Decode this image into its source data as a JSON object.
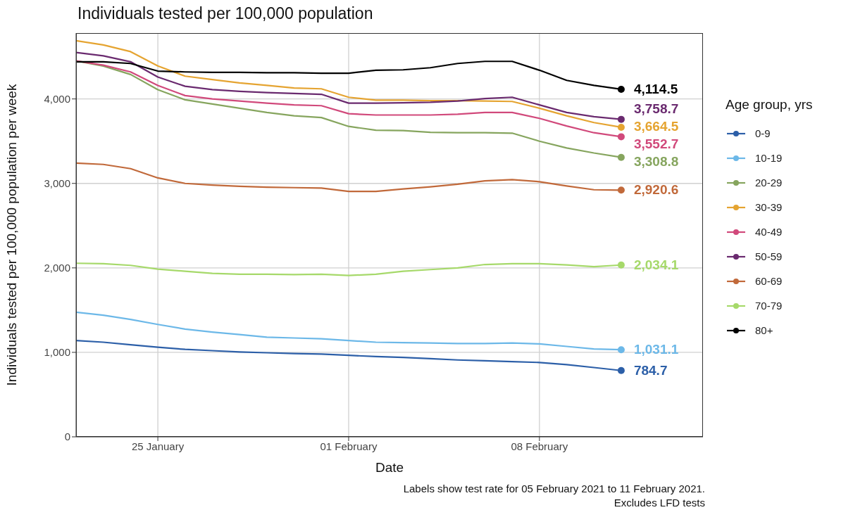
{
  "chart_data": {
    "type": "line",
    "title": "Individuals tested per 100,000 population",
    "xlabel": "Date",
    "ylabel": "Individuals tested per 100,000 population per week",
    "legend_title": "Age group, yrs",
    "legend": "right",
    "grid": true,
    "x": [
      "2021-01-22",
      "2021-01-23",
      "2021-01-24",
      "2021-01-25",
      "2021-01-26",
      "2021-01-27",
      "2021-01-28",
      "2021-01-29",
      "2021-01-30",
      "2021-01-31",
      "2021-02-01",
      "2021-02-02",
      "2021-02-03",
      "2021-02-04",
      "2021-02-05",
      "2021-02-06",
      "2021-02-07",
      "2021-02-08",
      "2021-02-09",
      "2021-02-10",
      "2021-02-11"
    ],
    "xlim": [
      "2021-01-22",
      "2021-02-14"
    ],
    "xticks": [
      {
        "value": "2021-01-25",
        "label": "25 January"
      },
      {
        "value": "2021-02-01",
        "label": "01 February"
      },
      {
        "value": "2021-02-08",
        "label": "08 February"
      }
    ],
    "ylim": [
      0,
      4780
    ],
    "yticks": [
      0,
      {
        "value": 1000,
        "label": "1,000"
      },
      {
        "value": 2000,
        "label": "2,000"
      },
      {
        "value": 3000,
        "label": "3,000"
      },
      {
        "value": 4000,
        "label": "4,000"
      }
    ],
    "series": [
      {
        "name": "0-9",
        "color": "#2c5fa8",
        "values": [
          1140,
          1120,
          1090,
          1060,
          1035,
          1020,
          1005,
          995,
          985,
          980,
          965,
          950,
          940,
          925,
          910,
          900,
          890,
          880,
          855,
          820,
          784.7
        ],
        "value_labels": [
          null,
          null,
          null,
          null,
          null,
          null,
          null,
          null,
          null,
          null,
          null,
          null,
          null,
          null,
          null,
          null,
          null,
          null,
          null,
          null,
          "784.7"
        ]
      },
      {
        "name": "10-19",
        "color": "#6cb8e8",
        "values": [
          1475,
          1440,
          1390,
          1330,
          1275,
          1240,
          1210,
          1180,
          1170,
          1160,
          1140,
          1120,
          1115,
          1110,
          1105,
          1105,
          1110,
          1100,
          1070,
          1040,
          1031.1
        ],
        "value_labels": [
          null,
          null,
          null,
          null,
          null,
          null,
          null,
          null,
          null,
          null,
          null,
          null,
          null,
          null,
          null,
          null,
          null,
          null,
          null,
          null,
          "1,031.1"
        ]
      },
      {
        "name": "20-29",
        "color": "#86a55e",
        "values": [
          4450,
          4390,
          4290,
          4110,
          3990,
          3940,
          3890,
          3840,
          3800,
          3780,
          3675,
          3630,
          3625,
          3605,
          3600,
          3600,
          3595,
          3500,
          3420,
          3360,
          3308.8
        ],
        "value_labels": [
          null,
          null,
          null,
          null,
          null,
          null,
          null,
          null,
          null,
          null,
          null,
          null,
          null,
          null,
          null,
          null,
          null,
          null,
          null,
          null,
          "3,308.8"
        ]
      },
      {
        "name": "30-39",
        "color": "#e5a431",
        "values": [
          4690,
          4640,
          4560,
          4390,
          4270,
          4230,
          4190,
          4160,
          4130,
          4120,
          4020,
          3985,
          3985,
          3980,
          3980,
          3975,
          3970,
          3890,
          3800,
          3720,
          3664.5
        ],
        "value_labels": [
          null,
          null,
          null,
          null,
          null,
          null,
          null,
          null,
          null,
          null,
          null,
          null,
          null,
          null,
          null,
          null,
          null,
          null,
          null,
          null,
          "3,664.5"
        ]
      },
      {
        "name": "40-49",
        "color": "#d1497b",
        "values": [
          4450,
          4400,
          4320,
          4160,
          4040,
          4000,
          3975,
          3950,
          3930,
          3920,
          3825,
          3810,
          3810,
          3810,
          3820,
          3840,
          3840,
          3770,
          3680,
          3600,
          3552.7
        ],
        "value_labels": [
          null,
          null,
          null,
          null,
          null,
          null,
          null,
          null,
          null,
          null,
          null,
          null,
          null,
          null,
          null,
          null,
          null,
          null,
          null,
          null,
          "3,552.7"
        ]
      },
      {
        "name": "50-59",
        "color": "#6a2a6f",
        "values": [
          4550,
          4510,
          4440,
          4260,
          4150,
          4110,
          4090,
          4075,
          4065,
          4055,
          3950,
          3950,
          3955,
          3960,
          3975,
          4005,
          4020,
          3930,
          3840,
          3790,
          3758.7
        ],
        "value_labels": [
          null,
          null,
          null,
          null,
          null,
          null,
          null,
          null,
          null,
          null,
          null,
          null,
          null,
          null,
          null,
          null,
          null,
          null,
          null,
          null,
          "3,758.7"
        ]
      },
      {
        "name": "60-69",
        "color": "#c1693a",
        "values": [
          3240,
          3225,
          3175,
          3065,
          3000,
          2980,
          2965,
          2955,
          2950,
          2945,
          2905,
          2905,
          2935,
          2960,
          2990,
          3030,
          3045,
          3020,
          2970,
          2925,
          2920.6
        ],
        "value_labels": [
          null,
          null,
          null,
          null,
          null,
          null,
          null,
          null,
          null,
          null,
          null,
          null,
          null,
          null,
          null,
          null,
          null,
          null,
          null,
          null,
          "2,920.6"
        ]
      },
      {
        "name": "70-79",
        "color": "#a6d96a",
        "values": [
          2055,
          2050,
          2030,
          1985,
          1960,
          1935,
          1925,
          1925,
          1920,
          1925,
          1910,
          1925,
          1960,
          1980,
          2000,
          2040,
          2050,
          2050,
          2035,
          2015,
          2034.1
        ],
        "value_labels": [
          null,
          null,
          null,
          null,
          null,
          null,
          null,
          null,
          null,
          null,
          null,
          null,
          null,
          null,
          null,
          null,
          null,
          null,
          null,
          null,
          "2,034.1"
        ]
      },
      {
        "name": "80+",
        "color": "#000000",
        "values": [
          4440,
          4440,
          4420,
          4330,
          4320,
          4315,
          4315,
          4310,
          4310,
          4305,
          4305,
          4340,
          4345,
          4370,
          4420,
          4445,
          4445,
          4340,
          4220,
          4160,
          4114.5
        ],
        "value_labels": [
          null,
          null,
          null,
          null,
          null,
          null,
          null,
          null,
          null,
          null,
          null,
          null,
          null,
          null,
          null,
          null,
          null,
          null,
          null,
          null,
          "4,114.5"
        ]
      }
    ],
    "annotations": [
      "Labels show test rate for 05 February 2021 to 11 February 2021.",
      "Excludes LFD tests"
    ]
  }
}
